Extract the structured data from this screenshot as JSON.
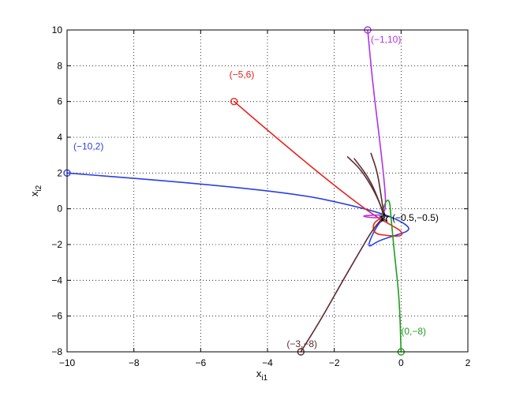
{
  "chart_data": {
    "type": "line",
    "title": "",
    "xlabel": "x",
    "xlabel_subscript": "i1",
    "ylabel": "x",
    "ylabel_subscript": "i2",
    "xlim": [
      -10,
      2
    ],
    "ylim": [
      -8,
      10
    ],
    "xticks": [
      -10,
      -8,
      -6,
      -4,
      -2,
      0,
      2
    ],
    "yticks": [
      -8,
      -6,
      -4,
      -2,
      0,
      2,
      4,
      6,
      8,
      10
    ],
    "xtick_labels": [
      "−10",
      "−8",
      "−6",
      "−4",
      "−2",
      "0",
      "2"
    ],
    "ytick_labels": [
      "−8",
      "−6",
      "−4",
      "−2",
      "0",
      "2",
      "4",
      "6",
      "8",
      "10"
    ],
    "grid": true,
    "equilibrium": {
      "x": -0.5,
      "y": -0.5,
      "label": "(−0.5,−0.5)",
      "color": "#000000"
    },
    "series": [
      {
        "color": "#2b3fe8",
        "start_label": "(−10,2)",
        "points": [
          [
            -10,
            2
          ],
          [
            -6,
            1.4
          ],
          [
            -3,
            0.8
          ],
          [
            -1.5,
            0.2
          ],
          [
            -0.5,
            -0.3
          ],
          [
            0.1,
            -0.8
          ],
          [
            0.3,
            -1.2
          ],
          [
            -0.2,
            -1.5
          ],
          [
            -0.7,
            -1.8
          ],
          [
            -1.0,
            -2.2
          ],
          [
            -0.9,
            -1.6
          ],
          [
            -0.7,
            -0.9
          ],
          [
            -0.5,
            -0.5
          ]
        ]
      },
      {
        "color": "#e8231d",
        "start_label": "(−5,6)",
        "points": [
          [
            -5,
            6
          ],
          [
            -3.5,
            3.6
          ],
          [
            -2,
            1.3
          ],
          [
            -0.8,
            -0.4
          ],
          [
            -0.3,
            -0.9
          ],
          [
            0.05,
            -1.3
          ],
          [
            0.0,
            -1.55
          ],
          [
            -0.4,
            -1.5
          ],
          [
            -0.8,
            -1.4
          ],
          [
            -0.85,
            -0.9
          ],
          [
            -0.7,
            -0.6
          ],
          [
            -0.5,
            -0.5
          ]
        ]
      },
      {
        "color": "#b233e6",
        "start_label": "(−1,10)",
        "points": [
          [
            -1,
            10
          ],
          [
            -0.85,
            7
          ],
          [
            -0.65,
            4
          ],
          [
            -0.5,
            1.5
          ],
          [
            -0.45,
            0.1
          ],
          [
            -0.55,
            -0.35
          ],
          [
            -0.8,
            -0.35
          ],
          [
            -1.2,
            -0.4
          ],
          [
            -0.9,
            -0.5
          ],
          [
            -0.6,
            -0.5
          ],
          [
            -0.5,
            -0.5
          ]
        ]
      },
      {
        "color": "#1f9e1f",
        "start_label": "(0,−8)",
        "points": [
          [
            0,
            -8
          ],
          [
            -0.05,
            -5
          ],
          [
            -0.2,
            -2.5
          ],
          [
            -0.3,
            -0.5
          ],
          [
            -0.35,
            0.6
          ],
          [
            -0.5,
            0.3
          ],
          [
            -0.6,
            -0.6
          ],
          [
            -0.5,
            -0.5
          ]
        ]
      },
      {
        "color": "#5c2a32",
        "start_label": "(−3,−8)",
        "points": [
          [
            -3,
            -8
          ],
          [
            -2.4,
            -6.2
          ],
          [
            -1.8,
            -4.2
          ],
          [
            -1.3,
            -2.6
          ],
          [
            -0.9,
            -1.3
          ],
          [
            -0.6,
            -0.6
          ],
          [
            -0.5,
            -0.5
          ]
        ]
      },
      {
        "color": "#5c2a32",
        "points": [
          [
            -1.6,
            2.9
          ],
          [
            -1.2,
            2.2
          ],
          [
            -0.8,
            1.0
          ],
          [
            -0.55,
            -0.1
          ],
          [
            -0.5,
            -0.5
          ]
        ]
      },
      {
        "color": "#5c2a32",
        "points": [
          [
            -0.9,
            3.1
          ],
          [
            -0.7,
            2.0
          ],
          [
            -0.58,
            0.5
          ],
          [
            -0.5,
            -0.5
          ]
        ]
      },
      {
        "color": "#5c2a32",
        "points": [
          [
            -1.4,
            2.8
          ],
          [
            -0.95,
            1.7
          ],
          [
            -0.65,
            0.4
          ],
          [
            -0.5,
            -0.5
          ]
        ]
      }
    ]
  }
}
